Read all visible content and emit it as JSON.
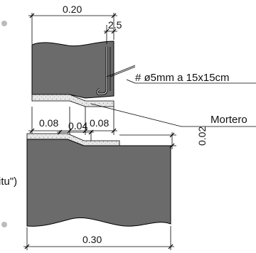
{
  "upper_piece": {
    "dim_width": "0.20",
    "dim_cover": "2.5",
    "rebar_label": "# ø5mm a 15x15cm",
    "mortar_label": "Mortero",
    "dim_left": "0.08",
    "dim_right": "0.08"
  },
  "lower_piece": {
    "dim_step": "0.04",
    "dim_thickness": "0.02",
    "dim_width": "0.30",
    "cutoff_label": "itu\")"
  },
  "colors": {
    "concrete": "#6b6b6b",
    "mortar": "#dcdcdc",
    "line": "#000000"
  }
}
